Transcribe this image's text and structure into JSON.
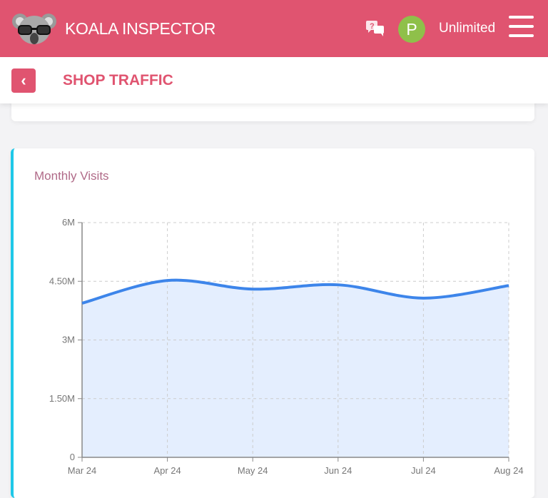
{
  "header": {
    "brand": "KOALA INSPECTOR",
    "avatar_letter": "P",
    "plan": "Unlimited",
    "icons": [
      "koala-logo",
      "help-chat-icon",
      "hamburger-menu-icon"
    ],
    "color": "#e05470"
  },
  "subheader": {
    "title": "SHOP TRAFFIC",
    "back_icon": "chevron-left-icon"
  },
  "card": {
    "title": "Monthly Visits",
    "accent": "#1ec8e8"
  },
  "chart_data": {
    "type": "area",
    "categories": [
      "Mar 24",
      "Apr 24",
      "May 24",
      "Jun 24",
      "Jul 24",
      "Aug 24"
    ],
    "values": [
      3940000,
      4520000,
      4300000,
      4410000,
      4070000,
      4390000
    ],
    "yticks": [
      0,
      1500000,
      3000000,
      4500000,
      6000000
    ],
    "ytick_labels": [
      "0",
      "1.50M",
      "3M",
      "4.50M",
      "6M"
    ],
    "ylim": [
      0,
      6000000
    ],
    "grid": true,
    "line_color": "#3d85ea",
    "fill_color": "#e4eefe"
  }
}
